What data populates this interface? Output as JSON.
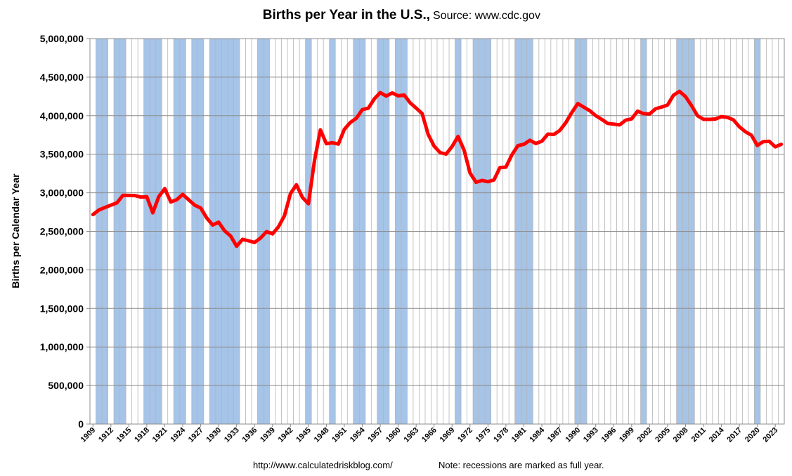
{
  "chart_data": {
    "type": "line",
    "title": "Births per Year in the U.S.,",
    "subtitle": "Source: www.cdc.gov",
    "ylabel": "Births per Calendar Year",
    "xlabel": "",
    "ylim": [
      0,
      5000000
    ],
    "xlim": [
      1909,
      2024
    ],
    "y_ticks": [
      "0",
      "500,000",
      "1,000,000",
      "1,500,000",
      "2,000,000",
      "2,500,000",
      "3,000,000",
      "3,500,000",
      "4,000,000",
      "4,500,000",
      "5,000,000"
    ],
    "x_tick_labels": [
      "1909",
      "1912",
      "1915",
      "1918",
      "1921",
      "1924",
      "1927",
      "1930",
      "1933",
      "1936",
      "1939",
      "1942",
      "1945",
      "1948",
      "1951",
      "1954",
      "1957",
      "1960",
      "1963",
      "1966",
      "1969",
      "1972",
      "1975",
      "1978",
      "1981",
      "1984",
      "1987",
      "1990",
      "1993",
      "1996",
      "1999",
      "2002",
      "2005",
      "2008",
      "2011",
      "2014",
      "2017",
      "2020",
      "2023"
    ],
    "grid": true,
    "legend": "none",
    "series_color": "#ff0000",
    "recession_color": "#a6c4e8",
    "recession_years": [
      1910,
      1911,
      1913,
      1914,
      1918,
      1919,
      1920,
      1923,
      1924,
      1926,
      1927,
      1929,
      1930,
      1931,
      1932,
      1933,
      1937,
      1938,
      1945,
      1949,
      1953,
      1954,
      1957,
      1958,
      1960,
      1961,
      1970,
      1973,
      1974,
      1975,
      1980,
      1981,
      1982,
      1990,
      1991,
      2001,
      2007,
      2008,
      2009,
      2020
    ],
    "series": [
      {
        "x": [
          1909,
          1910,
          1911,
          1912,
          1913,
          1914,
          1915,
          1916,
          1917,
          1918,
          1919,
          1920,
          1921,
          1922,
          1923,
          1924,
          1925,
          1926,
          1927,
          1928,
          1929,
          1930,
          1931,
          1932,
          1933,
          1934,
          1935,
          1936,
          1937,
          1938,
          1939,
          1940,
          1941,
          1942,
          1943,
          1944,
          1945,
          1946,
          1947,
          1948,
          1949,
          1950,
          1951,
          1952,
          1953,
          1954,
          1955,
          1956,
          1957,
          1958,
          1959,
          1960,
          1961,
          1962,
          1963,
          1964,
          1965,
          1966,
          1967,
          1968,
          1969,
          1970,
          1971,
          1972,
          1973,
          1974,
          1975,
          1976,
          1977,
          1978,
          1979,
          1980,
          1981,
          1982,
          1983,
          1984,
          1985,
          1986,
          1987,
          1988,
          1989,
          1990,
          1991,
          1992,
          1993,
          1994,
          1995,
          1996,
          1997,
          1998,
          1999,
          2000,
          2001,
          2002,
          2003,
          2004,
          2005,
          2006,
          2007,
          2008,
          2009,
          2010,
          2011,
          2012,
          2013,
          2014,
          2015,
          2016,
          2017,
          2018,
          2019,
          2020,
          2021,
          2022,
          2023,
          2024
        ],
        "values": [
          2718000,
          2777000,
          2809000,
          2840000,
          2869000,
          2966000,
          2965000,
          2964000,
          2944000,
          2948000,
          2740000,
          2950000,
          3055000,
          2882000,
          2910000,
          2979000,
          2909000,
          2839000,
          2802000,
          2674000,
          2582000,
          2618000,
          2506000,
          2440000,
          2307000,
          2396000,
          2377000,
          2355000,
          2413000,
          2496000,
          2466000,
          2559000,
          2703000,
          2989000,
          3104000,
          2939000,
          2858000,
          3411000,
          3817000,
          3637000,
          3649000,
          3632000,
          3823000,
          3913000,
          3965000,
          4078000,
          4097000,
          4218000,
          4300000,
          4255000,
          4295000,
          4258000,
          4268000,
          4167000,
          4098000,
          4027000,
          3760000,
          3606000,
          3521000,
          3502000,
          3600000,
          3731000,
          3556000,
          3258000,
          3137000,
          3160000,
          3144000,
          3168000,
          3327000,
          3333000,
          3494000,
          3612000,
          3629000,
          3681000,
          3639000,
          3669000,
          3761000,
          3757000,
          3809000,
          3910000,
          4041000,
          4158000,
          4111000,
          4065000,
          4000000,
          3953000,
          3900000,
          3891000,
          3881000,
          3942000,
          3959000,
          4059000,
          4026000,
          4022000,
          4090000,
          4112000,
          4138000,
          4266000,
          4316000,
          4248000,
          4131000,
          3999000,
          3954000,
          3953000,
          3957000,
          3988000,
          3978000,
          3946000,
          3856000,
          3792000,
          3748000,
          3614000,
          3664000,
          3668000,
          3596000,
          3628000
        ]
      }
    ]
  },
  "footer": {
    "url": "http://www.calculatedriskblog.com/",
    "note": "Note: recessions are marked as full year."
  }
}
